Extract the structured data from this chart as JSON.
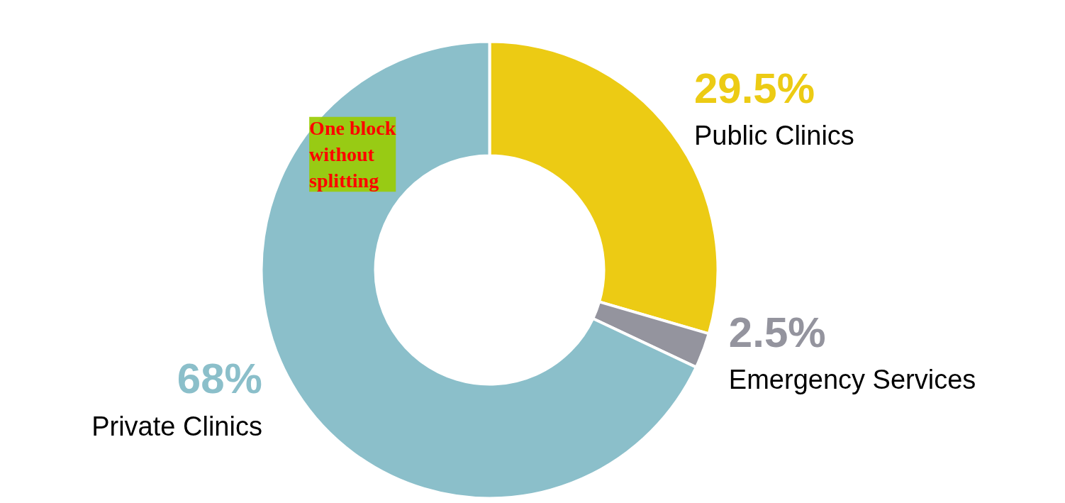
{
  "chart_data": {
    "type": "donut",
    "categories": [
      "Public Clinics",
      "Emergency Services",
      "Private Clinics"
    ],
    "values": [
      29.5,
      2.5,
      68
    ],
    "colors": [
      "#eccb14",
      "#94949e",
      "#8bbfca"
    ],
    "value_labels": [
      "29.5%",
      "2.5%",
      "68%"
    ],
    "annotations": [
      "One block\nwithout\nsplitting"
    ]
  }
}
